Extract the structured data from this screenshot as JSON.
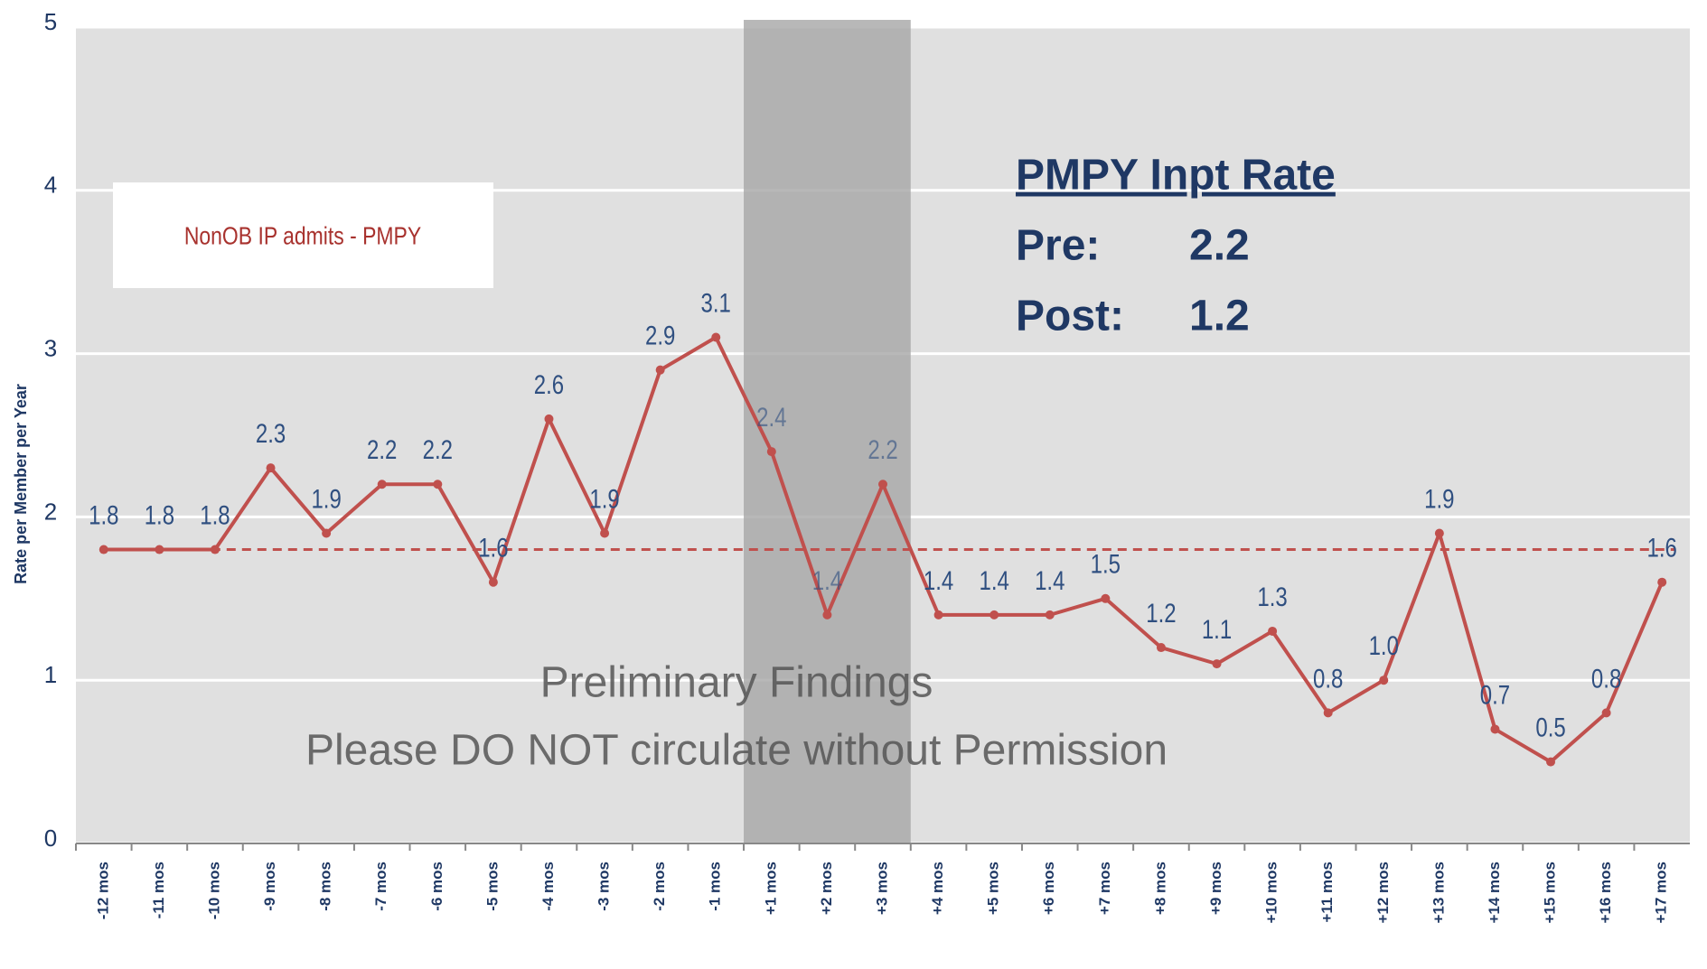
{
  "chart_data": {
    "type": "line",
    "y_axis_label": "Rate per Member per Year",
    "categories": [
      "-12 mos",
      "-11 mos",
      "-10 mos",
      "-9 mos",
      "-8 mos",
      "-7 mos",
      "-6 mos",
      "-5 mos",
      "-4 mos",
      "-3 mos",
      "-2 mos",
      "-1 mos",
      "+1 mos",
      "+2 mos",
      "+3 mos",
      "+4 mos",
      "+5 mos",
      "+6 mos",
      "+7 mos",
      "+8 mos",
      "+9 mos",
      "+10 mos",
      "+11 mos",
      "+12 mos",
      "+13 mos",
      "+14 mos",
      "+15 mos",
      "+16 mos",
      "+17 mos"
    ],
    "series": [
      {
        "name": "NonOB IP admits - PMPY",
        "color": "#c0504d",
        "values": [
          1.8,
          1.8,
          1.8,
          2.3,
          1.9,
          2.2,
          2.2,
          1.6,
          2.6,
          1.9,
          2.9,
          3.1,
          2.4,
          1.4,
          2.2,
          1.4,
          1.4,
          1.4,
          1.5,
          1.2,
          1.1,
          1.3,
          0.8,
          1.0,
          1.9,
          0.7,
          0.5,
          0.8,
          1.6
        ],
        "value_labels": [
          "1.8",
          "1.8",
          "1.8",
          "2.3",
          "1.9",
          "2.2",
          "2.2",
          "1.6",
          "2.6",
          "1.9",
          "2.9",
          "3.1",
          "2.4",
          "1.4",
          "2.2",
          "1.4",
          "1.4",
          "1.4",
          "1.5",
          "1.2",
          "1.1",
          "1.3",
          "0.8",
          "1.0",
          "1.9",
          "0.7",
          "0.5",
          "0.8",
          "1.6"
        ]
      }
    ],
    "reference_line": 1.8,
    "shaded_range": [
      "+1 mos",
      "+3 mos"
    ],
    "ylim": [
      0,
      5
    ],
    "yticks": [
      0,
      1,
      2,
      3,
      4,
      5
    ],
    "grid": true,
    "summary": {
      "title": "PMPY Inpt Rate",
      "pre_label": "Pre:",
      "pre_value": "2.2",
      "post_label": "Post:",
      "post_value": "1.2"
    },
    "watermark": [
      "Preliminary Findings",
      "Please DO NOT circulate without Permission"
    ]
  }
}
